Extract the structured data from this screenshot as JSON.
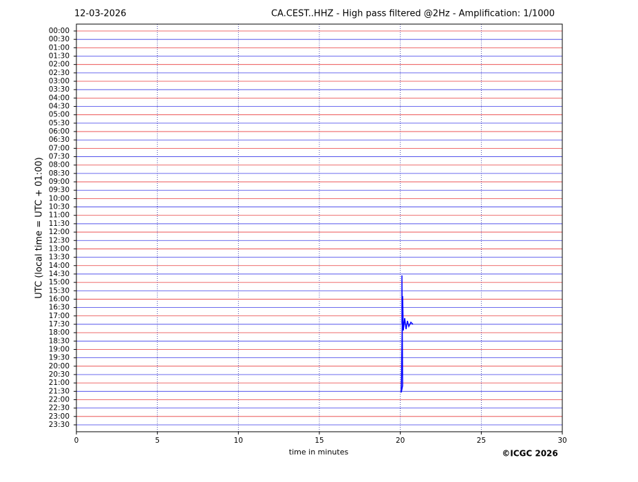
{
  "chart_data": {
    "type": "helicorder",
    "date": "12-03-2026",
    "title": "CA.CEST..HHZ - High pass filtered @2Hz - Amplification: 1/1000",
    "xlabel": "time in minutes",
    "ylabel": "UTC (local time = UTC + 01:00)",
    "copyright": "©ICGC 2026",
    "categories": [
      "00:00",
      "00:30",
      "01:00",
      "01:30",
      "02:00",
      "02:30",
      "03:00",
      "03:30",
      "04:00",
      "04:30",
      "05:00",
      "05:30",
      "06:00",
      "06:30",
      "07:00",
      "07:30",
      "08:00",
      "08:30",
      "09:00",
      "09:30",
      "10:00",
      "10:30",
      "11:00",
      "11:30",
      "12:00",
      "12:30",
      "13:00",
      "13:30",
      "14:00",
      "14:30",
      "15:00",
      "15:30",
      "16:00",
      "16:30",
      "17:00",
      "17:30",
      "18:00",
      "18:30",
      "19:00",
      "19:30",
      "20:00",
      "20:30",
      "21:00",
      "21:30",
      "22:00",
      "22:30",
      "23:00",
      "23:30"
    ],
    "trace_colors": [
      "#e83a3a",
      "#3a3ae8"
    ],
    "xlim": [
      0,
      30
    ],
    "xticks": [
      0,
      5,
      10,
      15,
      20,
      25,
      30
    ],
    "grid": true
  }
}
